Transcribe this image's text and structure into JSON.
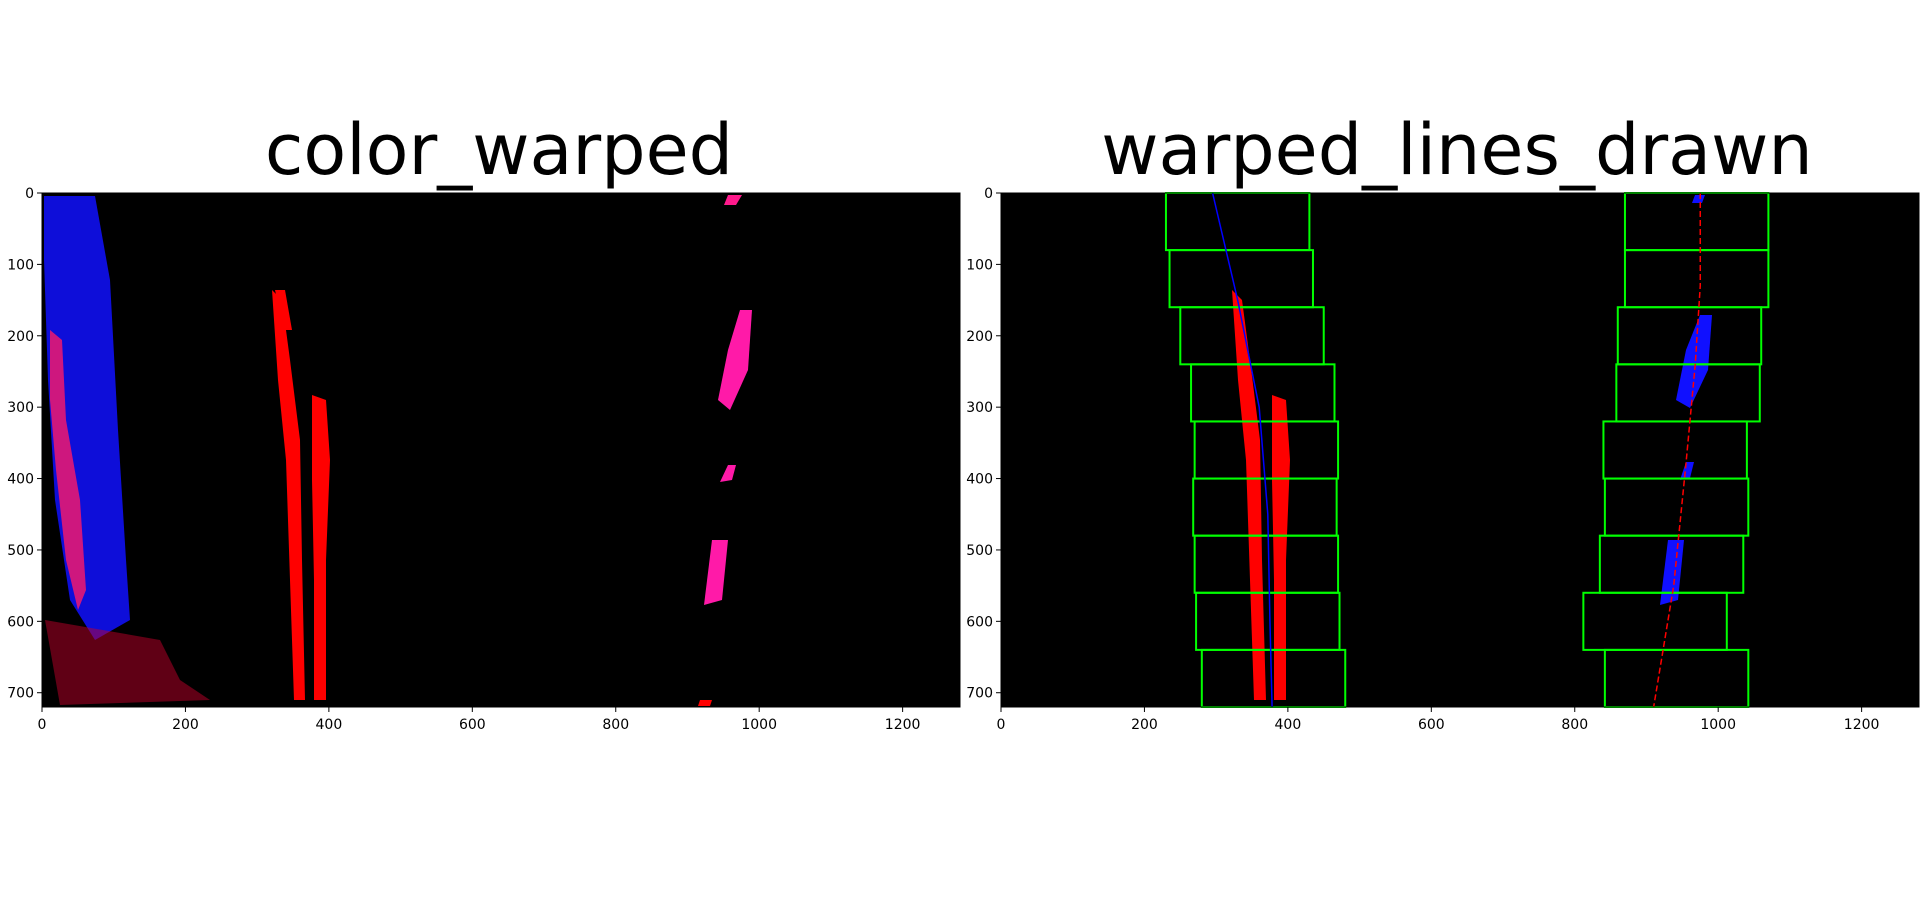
{
  "chart_data": [
    {
      "type": "image",
      "title": "color_warped",
      "xlim": [
        0,
        1280
      ],
      "ylim": [
        720,
        0
      ],
      "xticks": [
        0,
        200,
        400,
        600,
        800,
        1000,
        1200
      ],
      "yticks": [
        0,
        100,
        200,
        300,
        400,
        500,
        600,
        700
      ],
      "background": "#000000",
      "image_features": [
        {
          "name": "left edge noise",
          "color": "#0000ff",
          "x_range": [
            0,
            120
          ],
          "y_range": [
            0,
            600
          ]
        },
        {
          "name": "left lane line",
          "color": "#ff0000",
          "x_range": [
            320,
            400
          ],
          "y_range": [
            140,
            720
          ]
        },
        {
          "name": "right lane dashes",
          "color": "#ff00ff",
          "x_range": [
            920,
            1000
          ],
          "y_range": [
            0,
            580
          ]
        }
      ]
    },
    {
      "type": "image",
      "title": "warped_lines_drawn",
      "xlim": [
        0,
        1280
      ],
      "ylim": [
        720,
        0
      ],
      "xticks": [
        0,
        200,
        400,
        600,
        800,
        1000,
        1200
      ],
      "yticks": [
        0,
        100,
        200,
        300,
        400,
        500,
        600,
        700
      ],
      "background": "#000000",
      "window_color": "#00ff00",
      "left_windows": [
        {
          "x1": 230,
          "x2": 430,
          "y1": 0,
          "y2": 80
        },
        {
          "x1": 235,
          "x2": 435,
          "y1": 80,
          "y2": 160
        },
        {
          "x1": 250,
          "x2": 450,
          "y1": 160,
          "y2": 240
        },
        {
          "x1": 265,
          "x2": 465,
          "y1": 240,
          "y2": 320
        },
        {
          "x1": 270,
          "x2": 470,
          "y1": 320,
          "y2": 400
        },
        {
          "x1": 268,
          "x2": 468,
          "y1": 400,
          "y2": 480
        },
        {
          "x1": 270,
          "x2": 470,
          "y1": 480,
          "y2": 560
        },
        {
          "x1": 272,
          "x2": 472,
          "y1": 560,
          "y2": 640
        },
        {
          "x1": 280,
          "x2": 480,
          "y1": 640,
          "y2": 720
        }
      ],
      "right_windows": [
        {
          "x1": 870,
          "x2": 1070,
          "y1": 0,
          "y2": 80
        },
        {
          "x1": 870,
          "x2": 1070,
          "y1": 80,
          "y2": 160
        },
        {
          "x1": 860,
          "x2": 1060,
          "y1": 160,
          "y2": 240
        },
        {
          "x1": 858,
          "x2": 1058,
          "y1": 240,
          "y2": 320
        },
        {
          "x1": 840,
          "x2": 1040,
          "y1": 320,
          "y2": 400
        },
        {
          "x1": 842,
          "x2": 1042,
          "y1": 400,
          "y2": 480
        },
        {
          "x1": 835,
          "x2": 1035,
          "y1": 480,
          "y2": 560
        },
        {
          "x1": 812,
          "x2": 1012,
          "y1": 560,
          "y2": 640
        },
        {
          "x1": 842,
          "x2": 1042,
          "y1": 640,
          "y2": 720
        }
      ],
      "left_fit_line": {
        "color": "#0000ff",
        "points": [
          [
            295,
            0
          ],
          [
            330,
            150
          ],
          [
            360,
            300
          ],
          [
            372,
            450
          ],
          [
            375,
            600
          ],
          [
            378,
            720
          ]
        ]
      },
      "right_fit_line": {
        "color": "#ff0000",
        "points": [
          [
            975,
            0
          ],
          [
            975,
            130
          ],
          [
            968,
            240
          ],
          [
            955,
            380
          ],
          [
            938,
            550
          ],
          [
            910,
            720
          ]
        ]
      }
    }
  ]
}
